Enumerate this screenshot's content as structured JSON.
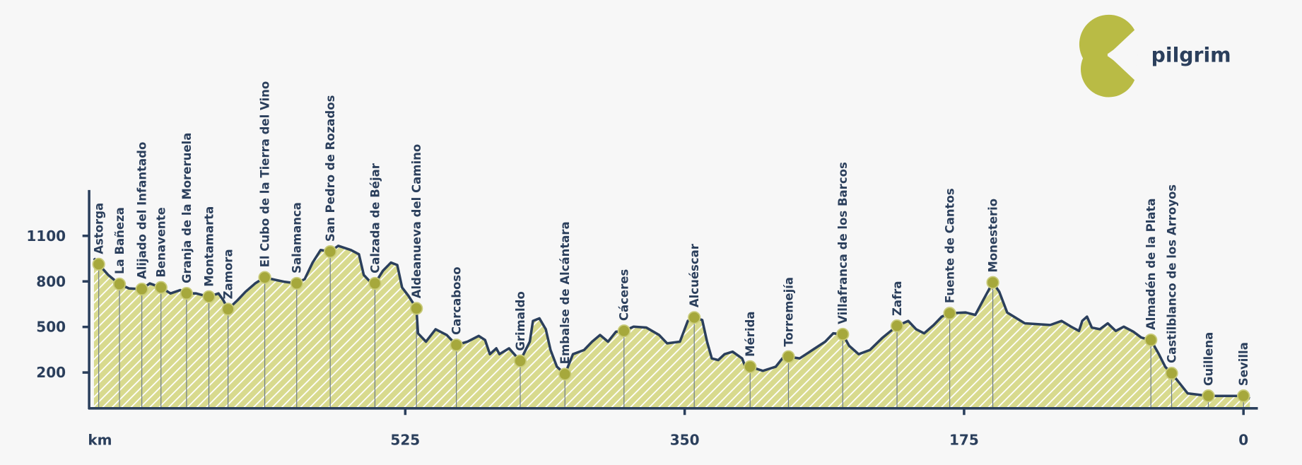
{
  "brand": "pilgrim",
  "chart_data": {
    "type": "area",
    "x_label": "km",
    "xlim": [
      723,
      -9
    ],
    "xticks": [
      525,
      350,
      175,
      0
    ],
    "ylim": [
      -36,
      1402
    ],
    "yticks": [
      200,
      500,
      800,
      1100
    ],
    "color": "#d8da8e",
    "line_color": "#2b3f5c",
    "x": [
      720,
      717,
      711,
      704,
      698,
      690,
      685,
      678,
      672,
      666,
      662,
      656,
      648,
      642,
      639,
      636,
      630,
      625,
      619,
      613,
      606,
      601,
      593,
      588,
      583,
      578,
      572,
      567,
      559,
      554,
      551,
      547,
      544,
      539,
      534,
      530,
      527,
      523,
      518,
      517,
      512,
      506,
      499,
      493,
      486,
      479,
      475,
      472,
      468,
      466,
      460,
      453,
      447,
      445,
      441,
      437,
      434,
      430,
      425,
      420,
      413,
      408,
      403,
      398,
      393,
      388,
      382,
      374,
      366,
      361,
      353,
      348,
      344,
      339,
      336,
      333,
      329,
      325,
      320,
      314,
      312,
      309,
      301,
      293,
      288,
      285,
      278,
      270,
      262,
      257,
      251,
      247,
      241,
      234,
      226,
      217,
      210,
      205,
      200,
      194,
      189,
      184,
      174,
      168,
      163,
      157,
      153,
      148,
      137,
      121,
      114,
      108,
      103,
      101,
      98,
      95,
      90,
      85,
      80,
      75,
      69,
      64,
      58,
      53,
      49,
      45,
      40,
      35,
      22,
      9,
      0,
      -4
    ],
    "values": [
      952,
      913,
      842,
      782,
      754,
      749,
      787,
      760,
      721,
      743,
      721,
      721,
      699,
      721,
      677,
      617,
      677,
      732,
      787,
      826,
      809,
      798,
      787,
      815,
      924,
      1007,
      996,
      1034,
      1007,
      979,
      842,
      798,
      787,
      870,
      924,
      908,
      760,
      705,
      623,
      458,
      403,
      485,
      447,
      381,
      403,
      441,
      414,
      321,
      359,
      321,
      359,
      277,
      403,
      540,
      557,
      485,
      348,
      238,
      189,
      321,
      348,
      403,
      447,
      403,
      469,
      474,
      502,
      496,
      447,
      392,
      403,
      540,
      562,
      546,
      403,
      293,
      282,
      321,
      337,
      293,
      238,
      238,
      211,
      238,
      304,
      304,
      293,
      348,
      403,
      458,
      452,
      376,
      321,
      348,
      430,
      507,
      540,
      485,
      458,
      513,
      568,
      590,
      595,
      579,
      677,
      793,
      733,
      595,
      524,
      513,
      540,
      502,
      474,
      540,
      568,
      496,
      485,
      524,
      474,
      502,
      469,
      430,
      414,
      321,
      238,
      194,
      129,
      63,
      46,
      46,
      46,
      30
    ],
    "stations": {
      "color": "#a6a83c",
      "names": [
        "Astorga",
        "La Bañeza",
        "Alijado del Infantado",
        "Benavente",
        "Granja de la Moreruela",
        "Montamarta",
        "Zamora",
        "El Cubo de la Tierra del Vino",
        "Salamanca",
        "San Pedro de Rozados",
        "Calzada de Béjar",
        "Aldeanueva del Camino",
        "Carcaboso",
        "Grimaldo",
        "Embalse de Alcántara",
        "Cáceres",
        "Alcuéscar",
        "Mérida",
        "Torremejía",
        "Villafranca de los Barcos",
        "Zafra",
        "Fuente de Cantos",
        "Monesterio",
        "Almadén de la Plata",
        "Castilblanco de los Arroyos",
        "Guillena",
        "Sevilla"
      ],
      "x": [
        717,
        704,
        690,
        678,
        662,
        648,
        636,
        613,
        593,
        572,
        544,
        518,
        493,
        453,
        425,
        388,
        344,
        309,
        285,
        251,
        217,
        184,
        157,
        58,
        45,
        22,
        0
      ],
      "values": [
        913,
        782,
        749,
        760,
        721,
        699,
        617,
        826,
        787,
        996,
        787,
        622,
        381,
        276,
        189,
        474,
        562,
        238,
        304,
        452,
        507,
        590,
        793,
        414,
        195,
        46,
        46
      ]
    }
  }
}
